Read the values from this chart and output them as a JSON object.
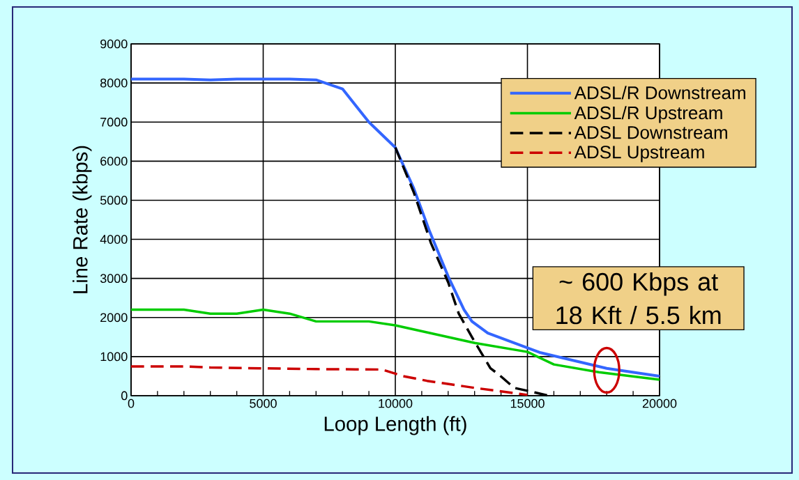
{
  "chart_data": {
    "type": "line",
    "xlabel": "Loop Length (ft)",
    "ylabel": "Line Rate (kbps)",
    "xlim": [
      0,
      20000
    ],
    "xticks": [
      0,
      5000,
      10000,
      15000,
      20000
    ],
    "ylim": [
      0,
      9000
    ],
    "yticks": [
      0,
      1000,
      2000,
      3000,
      4000,
      5000,
      6000,
      7000,
      8000,
      9000
    ],
    "grid": true,
    "legend": "top right",
    "series": [
      {
        "name": "ADSL/R Downstream",
        "color": "#3366ff",
        "line_style": "solid",
        "x": [
          0,
          1000,
          2000,
          3000,
          4000,
          5000,
          6000,
          7000,
          8000,
          9000,
          10000,
          10700,
          11300,
          12000,
          12600,
          12900,
          13500,
          15500,
          18000,
          20000
        ],
        "values": [
          8100,
          8100,
          8100,
          8080,
          8100,
          8100,
          8100,
          8080,
          7850,
          7000,
          6350,
          5300,
          4200,
          3050,
          2200,
          1900,
          1600,
          1100,
          700,
          500
        ]
      },
      {
        "name": "ADSL/R Upstream",
        "color": "#00cc00",
        "line_style": "solid",
        "x": [
          0,
          2000,
          3000,
          4000,
          5000,
          6000,
          7000,
          9000,
          10000,
          13000,
          15000,
          16000,
          17700,
          20000
        ],
        "values": [
          2200,
          2200,
          2100,
          2100,
          2200,
          2100,
          1900,
          1900,
          1800,
          1350,
          1120,
          800,
          600,
          410
        ]
      },
      {
        "name": "ADSL Downstream",
        "color": "#000000",
        "line_style": "dashed",
        "x": [
          10000,
          10700,
          11350,
          12000,
          12400,
          12900,
          13600,
          13900,
          14500,
          15300,
          15800
        ],
        "values": [
          6350,
          5200,
          3900,
          2900,
          2100,
          1500,
          700,
          550,
          200,
          80,
          0
        ]
      },
      {
        "name": "ADSL Upstream",
        "color": "#cc0000",
        "line_style": "dashed",
        "x": [
          0,
          2000,
          3000,
          5000,
          7000,
          9500,
          10300,
          11200,
          13000,
          14000,
          15000
        ],
        "values": [
          750,
          750,
          720,
          700,
          680,
          670,
          500,
          380,
          200,
          110,
          20
        ]
      }
    ],
    "annotations": [
      {
        "text": "~ 600 Kbps at 18 Kft / 5.5 km",
        "x": 18000,
        "y": 650
      }
    ]
  }
}
